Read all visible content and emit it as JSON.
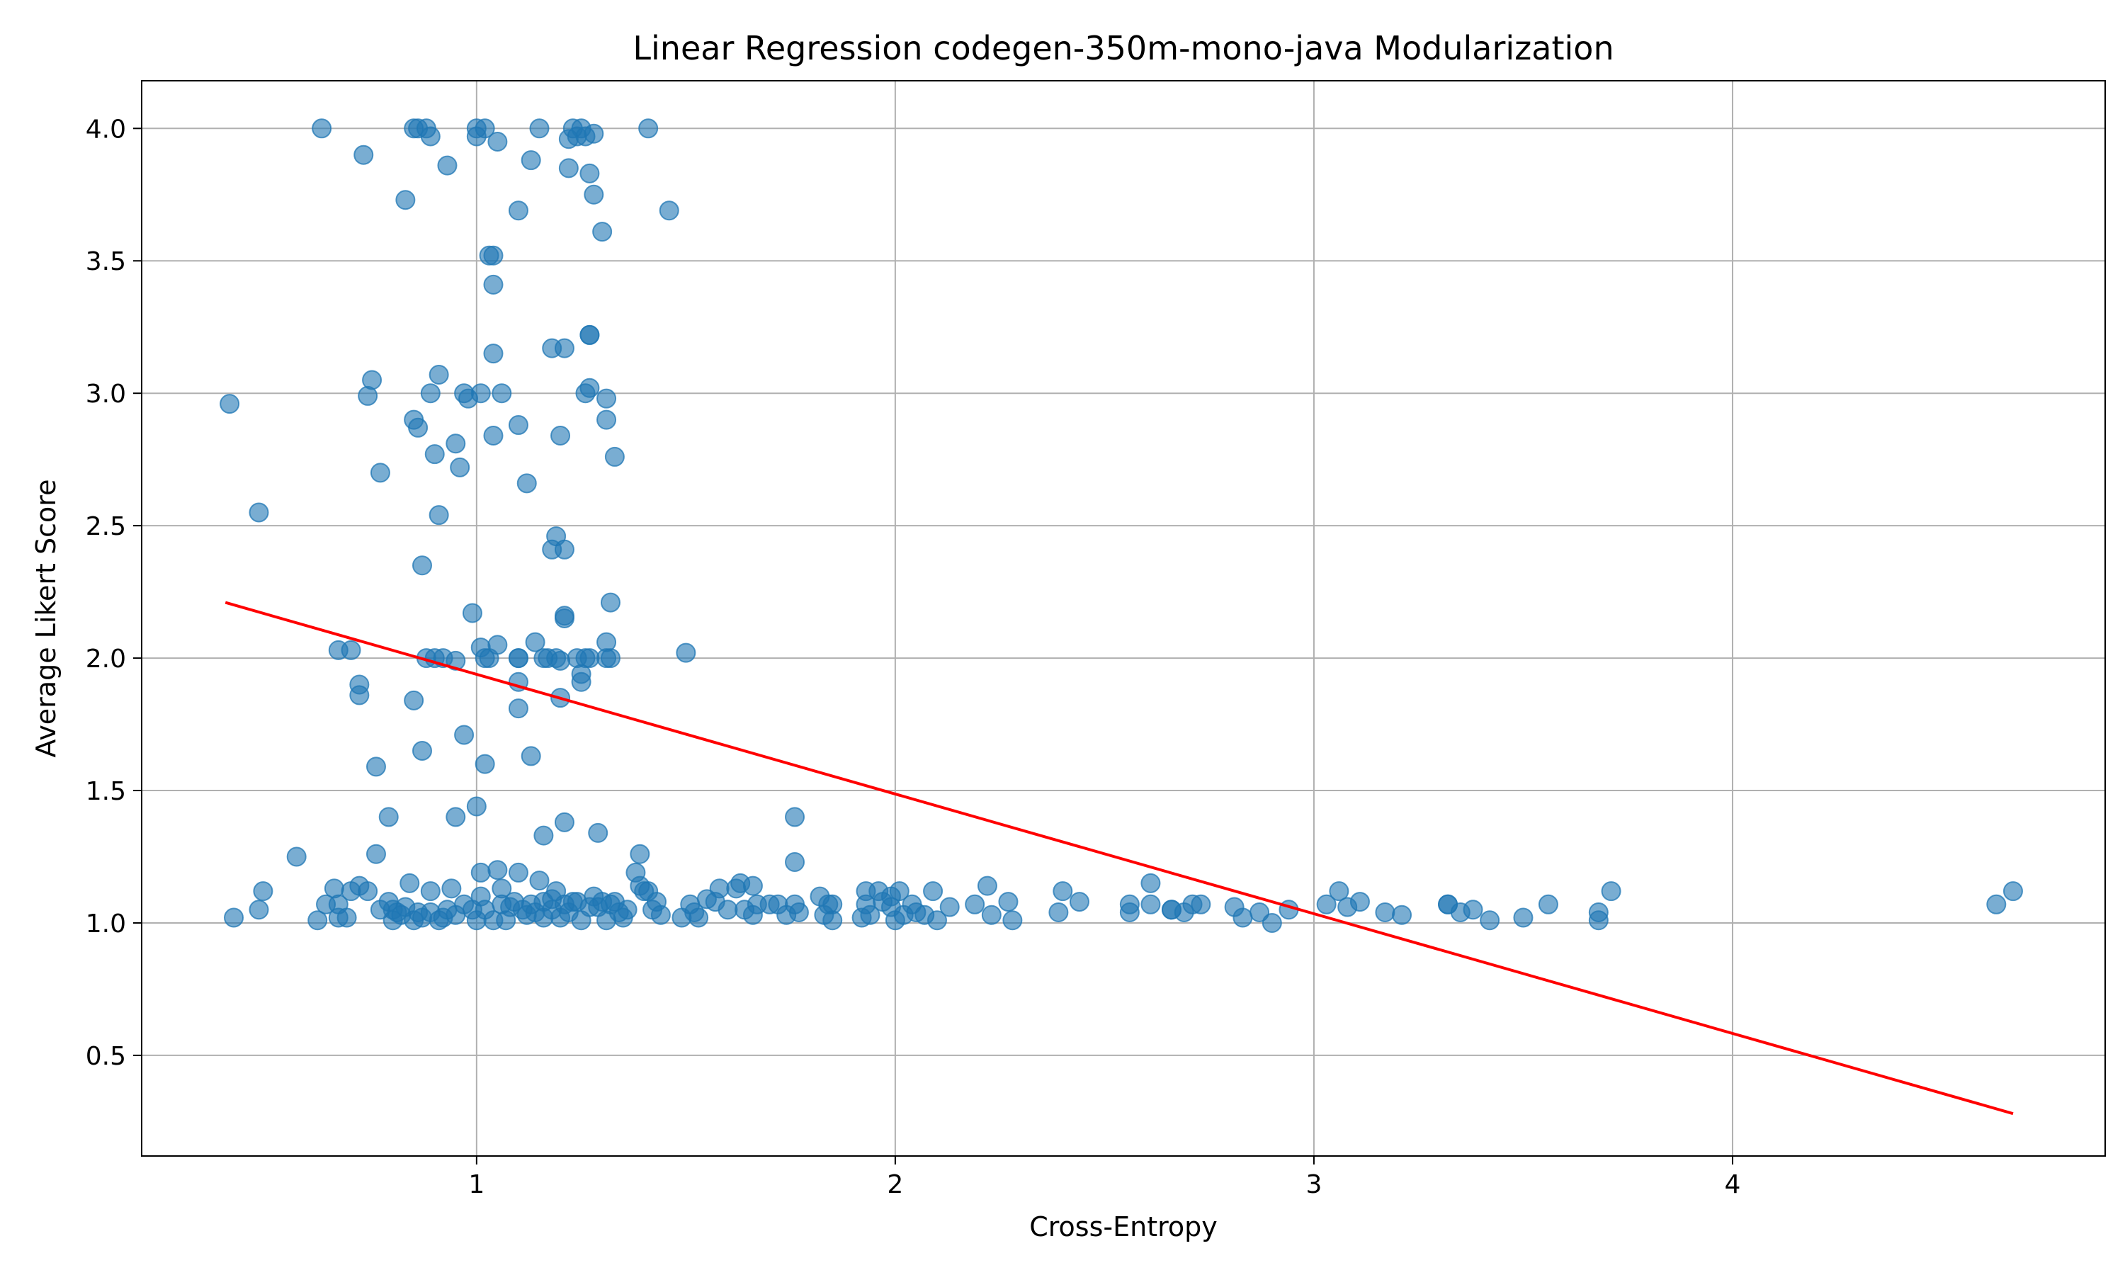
{
  "chart_data": {
    "type": "scatter",
    "title": "Linear Regression codegen-350m-mono-java Modularization",
    "xlabel": "Cross-Entropy",
    "ylabel": "Average Likert Score",
    "xlim": [
      0.2,
      4.89
    ],
    "ylim": [
      0.12,
      4.18
    ],
    "xticks": [
      1,
      2,
      3,
      4
    ],
    "xtick_labels": [
      "1",
      "2",
      "3",
      "4"
    ],
    "yticks": [
      0.5,
      1.0,
      1.5,
      2.0,
      2.5,
      3.0,
      3.5,
      4.0
    ],
    "ytick_labels": [
      "0.5",
      "1.0",
      "1.5",
      "2.0",
      "2.5",
      "3.0",
      "3.5",
      "4.0"
    ],
    "grid": true,
    "colors": {
      "points": "#1f77b4",
      "regression": "#ff0000",
      "grid": "#b0b0b0"
    },
    "regression": {
      "x": [
        0.4,
        4.67
      ],
      "y": [
        2.21,
        0.28
      ]
    },
    "points": [
      [
        0.41,
        2.96
      ],
      [
        0.48,
        2.55
      ],
      [
        0.63,
        4.0
      ],
      [
        0.73,
        3.9
      ],
      [
        0.74,
        2.99
      ],
      [
        0.75,
        3.05
      ],
      [
        0.77,
        2.7
      ],
      [
        0.85,
        2.9
      ],
      [
        0.86,
        2.87
      ],
      [
        0.83,
        3.73
      ],
      [
        0.85,
        4.0
      ],
      [
        0.86,
        4.0
      ],
      [
        0.88,
        4.0
      ],
      [
        0.89,
        3.97
      ],
      [
        0.93,
        3.86
      ],
      [
        0.89,
        3.0
      ],
      [
        0.9,
        2.77
      ],
      [
        0.91,
        3.07
      ],
      [
        0.91,
        2.54
      ],
      [
        0.95,
        2.81
      ],
      [
        0.96,
        2.72
      ],
      [
        0.97,
        3.0
      ],
      [
        0.98,
        2.98
      ],
      [
        0.87,
        2.35
      ],
      [
        0.88,
        2.0
      ],
      [
        0.9,
        2.0
      ],
      [
        0.92,
        2.0
      ],
      [
        0.95,
        1.99
      ],
      [
        0.85,
        1.84
      ],
      [
        0.87,
        1.65
      ],
      [
        0.97,
        1.71
      ],
      [
        0.67,
        2.03
      ],
      [
        0.7,
        2.03
      ],
      [
        0.72,
        1.9
      ],
      [
        0.72,
        1.86
      ],
      [
        0.76,
        1.59
      ],
      [
        0.79,
        1.4
      ],
      [
        0.57,
        1.25
      ],
      [
        1.0,
        3.97
      ],
      [
        1.0,
        4.0
      ],
      [
        1.02,
        4.0
      ],
      [
        1.05,
        3.95
      ],
      [
        1.03,
        3.52
      ],
      [
        1.04,
        3.52
      ],
      [
        1.04,
        3.41
      ],
      [
        1.04,
        3.15
      ],
      [
        1.01,
        3.0
      ],
      [
        1.06,
        3.0
      ],
      [
        1.04,
        2.84
      ],
      [
        1.1,
        3.69
      ],
      [
        1.1,
        2.88
      ],
      [
        1.12,
        2.66
      ],
      [
        1.13,
        3.88
      ],
      [
        1.15,
        4.0
      ],
      [
        1.18,
        3.17
      ],
      [
        1.2,
        2.84
      ],
      [
        1.21,
        3.17
      ],
      [
        1.22,
        3.96
      ],
      [
        1.22,
        3.85
      ],
      [
        1.23,
        4.0
      ],
      [
        1.24,
        3.97
      ],
      [
        1.25,
        4.0
      ],
      [
        1.26,
        3.97
      ],
      [
        1.28,
        3.98
      ],
      [
        1.27,
        3.83
      ],
      [
        1.28,
        3.75
      ],
      [
        1.3,
        3.61
      ],
      [
        1.27,
        3.22
      ],
      [
        1.27,
        3.22
      ],
      [
        1.26,
        3.0
      ],
      [
        1.27,
        3.02
      ],
      [
        1.31,
        2.98
      ],
      [
        1.31,
        2.9
      ],
      [
        1.33,
        2.76
      ],
      [
        1.41,
        4.0
      ],
      [
        1.46,
        3.69
      ],
      [
        0.99,
        2.17
      ],
      [
        1.01,
        2.04
      ],
      [
        1.02,
        2.0
      ],
      [
        1.03,
        2.0
      ],
      [
        1.05,
        2.05
      ],
      [
        1.1,
        2.0
      ],
      [
        1.1,
        2.0
      ],
      [
        1.1,
        1.91
      ],
      [
        1.1,
        1.81
      ],
      [
        1.14,
        2.06
      ],
      [
        1.16,
        2.0
      ],
      [
        1.17,
        2.0
      ],
      [
        1.19,
        2.0
      ],
      [
        1.2,
        1.99
      ],
      [
        1.21,
        2.15
      ],
      [
        1.21,
        2.16
      ],
      [
        1.24,
        2.0
      ],
      [
        1.25,
        1.94
      ],
      [
        1.25,
        1.91
      ],
      [
        1.26,
        2.0
      ],
      [
        1.27,
        2.0
      ],
      [
        1.31,
        2.06
      ],
      [
        1.31,
        2.0
      ],
      [
        1.32,
        2.0
      ],
      [
        1.32,
        2.21
      ],
      [
        1.19,
        2.46
      ],
      [
        1.18,
        2.41
      ],
      [
        1.21,
        2.41
      ],
      [
        1.2,
        1.85
      ],
      [
        1.02,
        1.6
      ],
      [
        1.13,
        1.63
      ],
      [
        1.0,
        1.44
      ],
      [
        0.95,
        1.4
      ],
      [
        1.16,
        1.33
      ],
      [
        1.21,
        1.38
      ],
      [
        1.29,
        1.34
      ],
      [
        1.5,
        2.02
      ],
      [
        1.39,
        1.26
      ],
      [
        1.38,
        1.19
      ],
      [
        1.39,
        1.14
      ],
      [
        1.41,
        1.12
      ],
      [
        1.76,
        1.4
      ],
      [
        1.76,
        1.23
      ],
      [
        0.42,
        1.02
      ],
      [
        0.48,
        1.05
      ],
      [
        0.49,
        1.12
      ],
      [
        0.62,
        1.01
      ],
      [
        0.64,
        1.07
      ],
      [
        0.66,
        1.13
      ],
      [
        0.67,
        1.07
      ],
      [
        0.67,
        1.02
      ],
      [
        0.69,
        1.02
      ],
      [
        0.7,
        1.12
      ],
      [
        0.72,
        1.14
      ],
      [
        0.74,
        1.12
      ],
      [
        0.76,
        1.26
      ],
      [
        0.77,
        1.05
      ],
      [
        0.79,
        1.08
      ],
      [
        0.8,
        1.05
      ],
      [
        0.8,
        1.01
      ],
      [
        0.81,
        1.04
      ],
      [
        0.82,
        1.03
      ],
      [
        0.83,
        1.06
      ],
      [
        0.84,
        1.15
      ],
      [
        0.85,
        1.01
      ],
      [
        0.86,
        1.04
      ],
      [
        0.87,
        1.02
      ],
      [
        0.89,
        1.12
      ],
      [
        0.89,
        1.04
      ],
      [
        0.91,
        1.01
      ],
      [
        0.92,
        1.02
      ],
      [
        0.93,
        1.05
      ],
      [
        0.94,
        1.13
      ],
      [
        0.95,
        1.03
      ],
      [
        0.97,
        1.07
      ],
      [
        0.99,
        1.05
      ],
      [
        1.0,
        1.01
      ],
      [
        1.01,
        1.1
      ],
      [
        1.01,
        1.19
      ],
      [
        1.02,
        1.05
      ],
      [
        1.04,
        1.01
      ],
      [
        1.05,
        1.2
      ],
      [
        1.06,
        1.07
      ],
      [
        1.06,
        1.13
      ],
      [
        1.07,
        1.01
      ],
      [
        1.08,
        1.06
      ],
      [
        1.09,
        1.08
      ],
      [
        1.1,
        1.19
      ],
      [
        1.11,
        1.05
      ],
      [
        1.12,
        1.03
      ],
      [
        1.13,
        1.07
      ],
      [
        1.14,
        1.04
      ],
      [
        1.15,
        1.16
      ],
      [
        1.16,
        1.08
      ],
      [
        1.16,
        1.02
      ],
      [
        1.18,
        1.09
      ],
      [
        1.18,
        1.05
      ],
      [
        1.19,
        1.12
      ],
      [
        1.2,
        1.02
      ],
      [
        1.21,
        1.07
      ],
      [
        1.22,
        1.04
      ],
      [
        1.23,
        1.08
      ],
      [
        1.24,
        1.08
      ],
      [
        1.25,
        1.01
      ],
      [
        1.27,
        1.06
      ],
      [
        1.28,
        1.1
      ],
      [
        1.29,
        1.06
      ],
      [
        1.3,
        1.08
      ],
      [
        1.31,
        1.01
      ],
      [
        1.32,
        1.07
      ],
      [
        1.33,
        1.08
      ],
      [
        1.34,
        1.04
      ],
      [
        1.35,
        1.02
      ],
      [
        1.36,
        1.05
      ],
      [
        1.4,
        1.12
      ],
      [
        1.42,
        1.05
      ],
      [
        1.43,
        1.08
      ],
      [
        1.44,
        1.03
      ],
      [
        1.49,
        1.02
      ],
      [
        1.51,
        1.07
      ],
      [
        1.52,
        1.04
      ],
      [
        1.53,
        1.02
      ],
      [
        1.55,
        1.09
      ],
      [
        1.57,
        1.08
      ],
      [
        1.58,
        1.13
      ],
      [
        1.6,
        1.05
      ],
      [
        1.62,
        1.13
      ],
      [
        1.63,
        1.15
      ],
      [
        1.64,
        1.05
      ],
      [
        1.66,
        1.14
      ],
      [
        1.66,
        1.03
      ],
      [
        1.67,
        1.07
      ],
      [
        1.7,
        1.07
      ],
      [
        1.72,
        1.07
      ],
      [
        1.74,
        1.03
      ],
      [
        1.76,
        1.07
      ],
      [
        1.77,
        1.04
      ],
      [
        1.82,
        1.1
      ],
      [
        1.83,
        1.03
      ],
      [
        1.84,
        1.07
      ],
      [
        1.85,
        1.01
      ],
      [
        1.85,
        1.07
      ],
      [
        1.92,
        1.02
      ],
      [
        1.93,
        1.12
      ],
      [
        1.93,
        1.07
      ],
      [
        1.94,
        1.03
      ],
      [
        1.96,
        1.12
      ],
      [
        1.97,
        1.08
      ],
      [
        1.99,
        1.06
      ],
      [
        1.99,
        1.1
      ],
      [
        2.0,
        1.01
      ],
      [
        2.01,
        1.12
      ],
      [
        2.02,
        1.03
      ],
      [
        2.04,
        1.07
      ],
      [
        2.05,
        1.04
      ],
      [
        2.07,
        1.03
      ],
      [
        2.09,
        1.12
      ],
      [
        2.1,
        1.01
      ],
      [
        2.13,
        1.06
      ],
      [
        2.19,
        1.07
      ],
      [
        2.22,
        1.14
      ],
      [
        2.23,
        1.03
      ],
      [
        2.27,
        1.08
      ],
      [
        2.28,
        1.01
      ],
      [
        2.39,
        1.04
      ],
      [
        2.4,
        1.12
      ],
      [
        2.44,
        1.08
      ],
      [
        2.56,
        1.04
      ],
      [
        2.56,
        1.07
      ],
      [
        2.61,
        1.15
      ],
      [
        2.61,
        1.07
      ],
      [
        2.66,
        1.05
      ],
      [
        2.66,
        1.05
      ],
      [
        2.69,
        1.04
      ],
      [
        2.71,
        1.07
      ],
      [
        2.73,
        1.07
      ],
      [
        2.81,
        1.06
      ],
      [
        2.83,
        1.02
      ],
      [
        2.87,
        1.04
      ],
      [
        2.9,
        1.0
      ],
      [
        2.94,
        1.05
      ],
      [
        3.03,
        1.07
      ],
      [
        3.06,
        1.12
      ],
      [
        3.08,
        1.06
      ],
      [
        3.11,
        1.08
      ],
      [
        3.17,
        1.04
      ],
      [
        3.21,
        1.03
      ],
      [
        3.32,
        1.07
      ],
      [
        3.32,
        1.07
      ],
      [
        3.35,
        1.04
      ],
      [
        3.38,
        1.05
      ],
      [
        3.42,
        1.01
      ],
      [
        3.5,
        1.02
      ],
      [
        3.56,
        1.07
      ],
      [
        3.68,
        1.01
      ],
      [
        3.68,
        1.04
      ],
      [
        3.71,
        1.12
      ],
      [
        4.63,
        1.07
      ],
      [
        4.67,
        1.12
      ]
    ]
  }
}
